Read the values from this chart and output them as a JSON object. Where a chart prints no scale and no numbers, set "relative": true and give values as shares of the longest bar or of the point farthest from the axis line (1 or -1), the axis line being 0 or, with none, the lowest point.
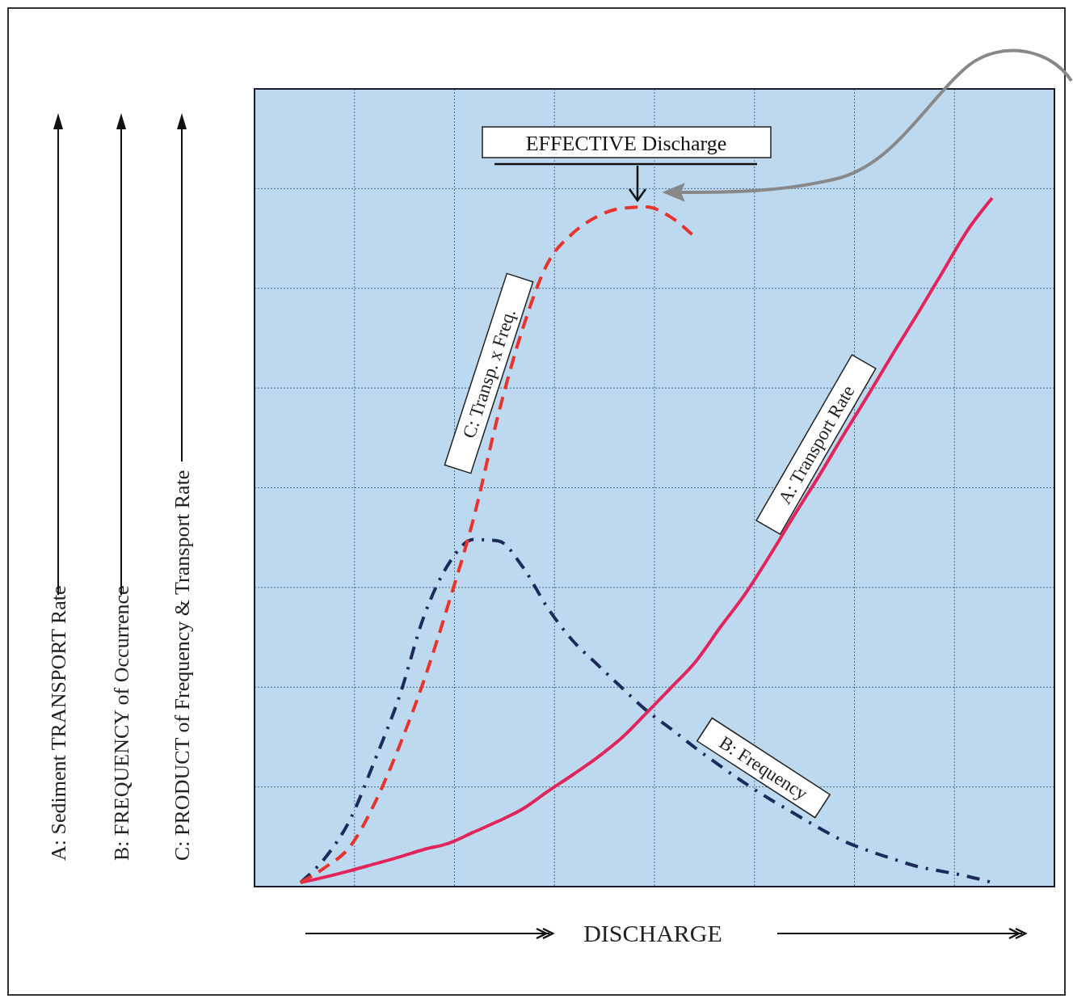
{
  "chart_data": {
    "type": "line",
    "relative": true,
    "grid": true,
    "legend": false,
    "marker": "none",
    "xlabel": "DISCHARGE",
    "ylabel": "A: Sediment TRANSPORT Rate\nB: FREQUENCY of Occurrence\nC: PRODUCT of Frequency & Transport Rate",
    "annotations": [
      "EFFECTIVE Discharge"
    ],
    "categories": [
      null,
      null,
      null,
      null,
      null,
      null,
      null,
      null,
      null,
      null,
      null,
      null,
      null,
      null,
      null,
      null,
      null,
      null,
      null,
      null,
      null,
      null,
      null,
      null,
      null,
      null,
      null,
      null,
      null
    ],
    "series": [
      {
        "name": "A: Transport Rate",
        "color": "#e3245a",
        "line_style": "solid",
        "values": [
          0.006,
          0.014,
          0.023,
          0.033,
          0.043,
          0.054,
          0.063,
          0.079,
          0.095,
          0.113,
          0.138,
          0.162,
          0.187,
          0.216,
          0.252,
          0.289,
          0.327,
          0.377,
          0.425,
          0.481,
          0.54,
          0.597,
          0.657,
          0.715,
          0.775,
          0.833,
          0.893,
          0.953,
          1
        ]
      },
      {
        "name": "B: Frequency",
        "color": "#1c2a5c",
        "line_style": "dashdot",
        "values": [
          0.006,
          0.042,
          0.097,
          0.183,
          0.276,
          0.393,
          0.469,
          0.504,
          0.502,
          0.464,
          0.405,
          0.358,
          0.323,
          0.289,
          0.256,
          0.229,
          0.201,
          0.175,
          0.15,
          0.127,
          0.106,
          0.085,
          0.066,
          0.052,
          0.04,
          0.029,
          0.022,
          0.015,
          0.006
        ]
      },
      {
        "name": "C: Transp. x Freq.",
        "color": "#e8322c",
        "line_style": "dashed",
        "values": [
          0.006,
          0.028,
          0.058,
          0.121,
          0.204,
          0.3,
          0.412,
          0.534,
          0.685,
          0.811,
          0.905,
          0.948,
          0.973,
          0.985,
          0.987,
          0.972,
          0.942,
          null,
          null,
          null,
          null,
          null,
          null,
          null,
          null,
          null,
          null,
          null,
          null
        ]
      }
    ]
  }
}
